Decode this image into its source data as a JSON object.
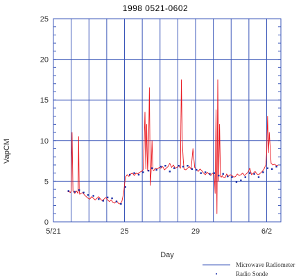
{
  "chart_data": {
    "type": "line",
    "title": "1998    0521-0602",
    "xlabel": "Day",
    "ylabel": "VapCM",
    "xlim": [
      0,
      12.8
    ],
    "ylim": [
      0,
      25
    ],
    "x_ticks": [
      {
        "value": 0,
        "label": "5/21"
      },
      {
        "value": 4,
        "label": "25"
      },
      {
        "value": 8,
        "label": "29"
      },
      {
        "value": 12,
        "label": "6/2"
      }
    ],
    "y_ticks": [
      0,
      5,
      10,
      15,
      20,
      25
    ],
    "grid": true,
    "legend": {
      "placement": "bottom-right"
    },
    "colors": {
      "grid": "#3a56b8",
      "radiometer": "#e8141c",
      "sonde": "#1a2fa8",
      "axis": "#3a56b8"
    },
    "series": [
      {
        "name": "Microwave Radiometer",
        "kind": "line",
        "x": [
          0.8,
          0.9,
          0.95,
          1.0,
          1.05,
          1.1,
          1.2,
          1.3,
          1.38,
          1.42,
          1.45,
          1.48,
          1.55,
          1.65,
          1.75,
          1.85,
          1.95,
          2.05,
          2.15,
          2.25,
          2.35,
          2.45,
          2.55,
          2.65,
          2.75,
          2.85,
          2.95,
          3.05,
          3.15,
          3.25,
          3.35,
          3.45,
          3.55,
          3.65,
          3.75,
          3.85,
          3.95,
          4.05,
          4.15,
          4.25,
          4.35,
          4.45,
          4.55,
          4.65,
          4.75,
          4.85,
          4.95,
          5.05,
          5.1,
          5.15,
          5.2,
          5.25,
          5.3,
          5.35,
          5.4,
          5.45,
          5.5,
          5.55,
          5.6,
          5.65,
          5.7,
          5.75,
          5.85,
          5.95,
          6.05,
          6.15,
          6.25,
          6.35,
          6.45,
          6.55,
          6.65,
          6.75,
          6.85,
          6.95,
          7.05,
          7.15,
          7.2,
          7.25,
          7.3,
          7.35,
          7.45,
          7.55,
          7.65,
          7.75,
          7.85,
          7.95,
          8.05,
          8.15,
          8.25,
          8.35,
          8.45,
          8.55,
          8.65,
          8.75,
          8.85,
          8.95,
          9.05,
          9.1,
          9.15,
          9.2,
          9.25,
          9.3,
          9.35,
          9.4,
          9.45,
          9.5,
          9.55,
          9.65,
          9.75,
          9.85,
          9.95,
          10.05,
          10.15,
          10.25,
          10.35,
          10.45,
          10.55,
          10.65,
          10.75,
          10.85,
          10.95,
          11.05,
          11.15,
          11.25,
          11.35,
          11.45,
          11.55,
          11.65,
          11.75,
          11.85,
          11.95,
          12.0,
          12.05,
          12.1,
          12.15,
          12.25,
          12.35,
          12.45,
          12.55,
          12.65
        ],
        "y": [
          3.7,
          3.7,
          3.6,
          3.8,
          11.0,
          3.8,
          3.5,
          3.8,
          3.5,
          10.5,
          3.9,
          3.4,
          3.5,
          3.6,
          3.3,
          3.1,
          2.9,
          2.8,
          3.1,
          2.9,
          2.7,
          2.9,
          3.1,
          2.8,
          2.6,
          2.8,
          3.0,
          2.7,
          2.5,
          2.7,
          2.4,
          2.3,
          2.6,
          2.3,
          2.2,
          2.5,
          3.5,
          5.5,
          5.8,
          5.6,
          5.9,
          6.0,
          5.7,
          6.0,
          5.9,
          6.1,
          6.2,
          6.4,
          9.0,
          13.5,
          6.5,
          12.0,
          6.3,
          8.5,
          16.5,
          4.5,
          6.2,
          10.0,
          6.4,
          6.3,
          6.5,
          6.6,
          6.5,
          6.7,
          6.6,
          6.8,
          6.4,
          6.6,
          6.8,
          7.2,
          6.7,
          7.0,
          6.6,
          6.7,
          6.9,
          6.6,
          17.5,
          10.0,
          7.8,
          6.5,
          6.4,
          6.6,
          6.8,
          6.5,
          9.0,
          6.7,
          6.4,
          6.2,
          6.5,
          6.3,
          6.0,
          5.8,
          6.1,
          5.9,
          5.7,
          6.0,
          5.8,
          3.5,
          13.8,
          1.0,
          17.5,
          5.0,
          12.0,
          5.6,
          5.5,
          5.7,
          5.5,
          5.4,
          5.9,
          5.6,
          5.8,
          5.7,
          5.5,
          5.6,
          5.9,
          5.7,
          5.8,
          6.0,
          5.7,
          5.9,
          6.1,
          6.6,
          5.8,
          6.0,
          6.2,
          5.9,
          5.8,
          6.0,
          6.2,
          6.5,
          7.0,
          8.5,
          13.0,
          8.5,
          11.0,
          7.2,
          7.0,
          7.1,
          6.9,
          7.0
        ]
      },
      {
        "name": "Radio Sonde",
        "kind": "points",
        "x": [
          0.85,
          1.2,
          1.45,
          1.7,
          1.95,
          2.25,
          2.55,
          2.8,
          3.05,
          3.3,
          3.55,
          3.8,
          4.05,
          4.3,
          4.55,
          4.8,
          5.05,
          5.35,
          5.55,
          5.8,
          6.05,
          6.3,
          6.55,
          6.8,
          7.05,
          7.3,
          7.55,
          7.8,
          8.05,
          8.3,
          8.55,
          8.8,
          9.05,
          9.3,
          9.55,
          9.8,
          10.05,
          10.3,
          10.55,
          10.8,
          11.05,
          11.3,
          11.55,
          11.8,
          12.05,
          12.3,
          12.55
        ],
        "y": [
          3.8,
          3.7,
          3.9,
          3.6,
          3.3,
          3.2,
          2.8,
          2.6,
          3.0,
          2.9,
          2.5,
          2.2,
          4.3,
          5.8,
          6.0,
          5.8,
          6.1,
          6.3,
          6.6,
          6.4,
          6.8,
          6.9,
          6.2,
          6.6,
          6.9,
          6.8,
          6.9,
          6.5,
          6.4,
          6.0,
          6.1,
          5.9,
          6.0,
          5.7,
          5.9,
          5.6,
          5.5,
          4.9,
          5.1,
          5.5,
          6.0,
          5.9,
          5.5,
          6.1,
          6.6,
          6.5,
          6.8
        ]
      }
    ]
  }
}
